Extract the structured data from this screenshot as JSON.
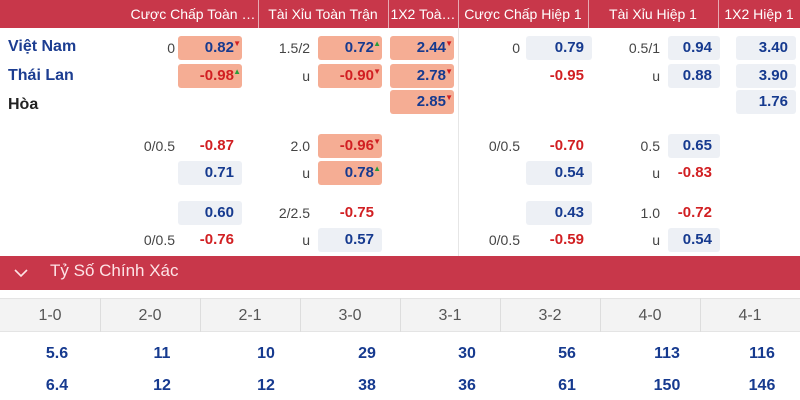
{
  "header": {
    "cols": [
      "Cược Chấp Toàn …",
      "Tài Xỉu Toàn Trận",
      "1X2 Toà…",
      "Cược Chấp Hiệp 1",
      "Tài Xỉu Hiệp 1",
      "1X2 Hiệp 1"
    ]
  },
  "teams": {
    "home": "Việt Nam",
    "away": "Thái Lan",
    "draw": "Hòa"
  },
  "market1": {
    "ah_ft_line": "0",
    "ah_ft_home": "0.82",
    "ah_ft_away": "-0.98",
    "ou_ft_line": "1.5/2",
    "ou_ft_u": "u",
    "ou_ft_over": "0.72",
    "ou_ft_under": "-0.90",
    "x12_ft_home": "2.44",
    "x12_ft_away": "2.78",
    "x12_ft_draw": "2.85",
    "ah_h1_line": "0",
    "ah_h1_home": "0.79",
    "ah_h1_away": "-0.95",
    "ou_h1_line": "0.5/1",
    "ou_h1_u": "u",
    "ou_h1_over": "0.94",
    "ou_h1_under": "0.88",
    "x12_h1_home": "3.40",
    "x12_h1_away": "3.90",
    "x12_h1_draw": "1.76"
  },
  "market2": {
    "ah_ft_line": "0/0.5",
    "ah_ft_home": "-0.87",
    "ah_ft_away": "0.71",
    "ou_ft_line": "2.0",
    "ou_ft_u": "u",
    "ou_ft_over": "-0.96",
    "ou_ft_under": "0.78",
    "ah_h1_line": "0/0.5",
    "ah_h1_home": "-0.70",
    "ah_h1_away": "0.54",
    "ou_h1_line": "0.5",
    "ou_h1_u": "u",
    "ou_h1_over": "0.65",
    "ou_h1_under": "-0.83"
  },
  "market3": {
    "ah_ft_line": "0/0.5",
    "ah_ft_home": "0.60",
    "ah_ft_away": "-0.76",
    "ou_ft_line": "2/2.5",
    "ou_ft_u": "u",
    "ou_ft_over": "-0.75",
    "ou_ft_under": "0.57",
    "ah_h1_line": "0/0.5",
    "ah_h1_home": "0.43",
    "ah_h1_away": "-0.59",
    "ou_h1_line": "1.0",
    "ou_h1_u": "u",
    "ou_h1_over": "-0.72",
    "ou_h1_under": "0.54"
  },
  "correct_score": {
    "title": "Tỷ Số Chính Xác",
    "scores": [
      "1-0",
      "2-0",
      "2-1",
      "3-0",
      "3-1",
      "3-2",
      "4-0",
      "4-1"
    ],
    "row1": [
      "5.6",
      "11",
      "10",
      "29",
      "30",
      "56",
      "113",
      "116"
    ],
    "row2": [
      "6.4",
      "12",
      "12",
      "38",
      "36",
      "61",
      "150",
      "146"
    ]
  },
  "colors": {
    "header_bg": "#c8374a",
    "team_blue": "#1c3d91",
    "negative_red": "#d11f22",
    "highlight_orange": "#f5ad94",
    "odds_box_bg": "#edf0f5"
  },
  "icons": {
    "collapse": "chevron-down-icon",
    "up": "arrow-up-icon",
    "down": "arrow-down-icon"
  }
}
